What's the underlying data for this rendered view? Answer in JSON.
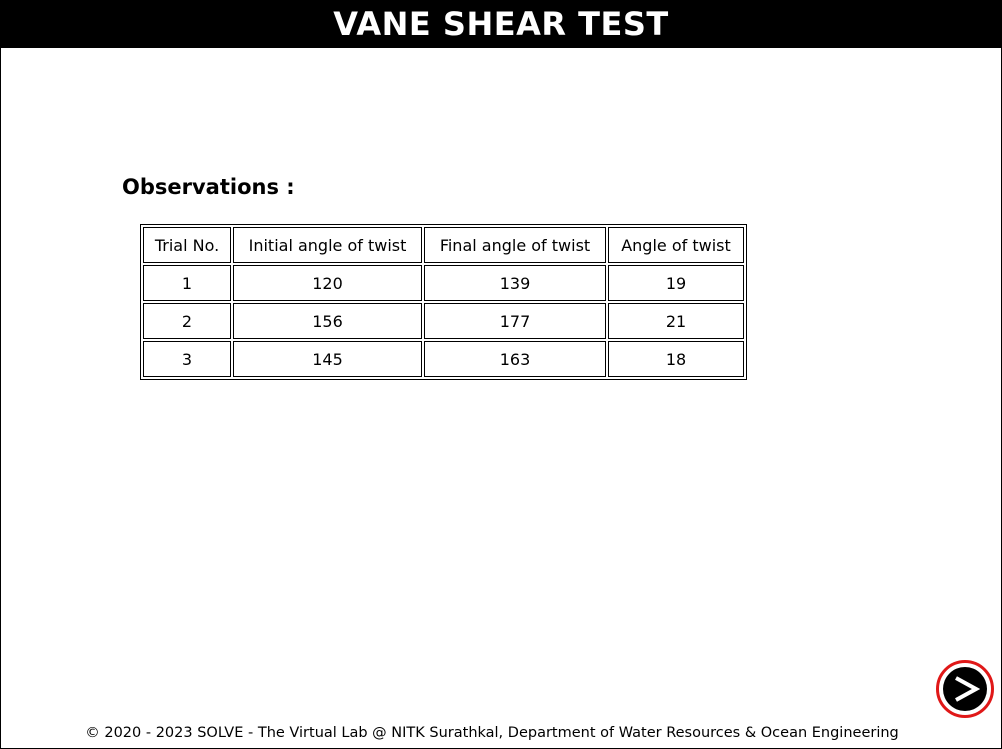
{
  "header": {
    "title": "VANE SHEAR TEST"
  },
  "observations": {
    "heading": "Observations :",
    "columns": [
      "Trial No.",
      "Initial angle of twist",
      "Final angle of twist",
      "Angle of twist"
    ],
    "rows": [
      [
        "1",
        "120",
        "139",
        "19"
      ],
      [
        "2",
        "156",
        "177",
        "21"
      ],
      [
        "3",
        "145",
        "163",
        "18"
      ]
    ]
  },
  "navigation": {
    "next_icon": "next-arrow-icon",
    "ring_color": "#e01818"
  },
  "footer": {
    "text": "© 2020 - 2023 SOLVE - The Virtual Lab @ NITK Surathkal, Department of Water Resources & Ocean Engineering"
  }
}
